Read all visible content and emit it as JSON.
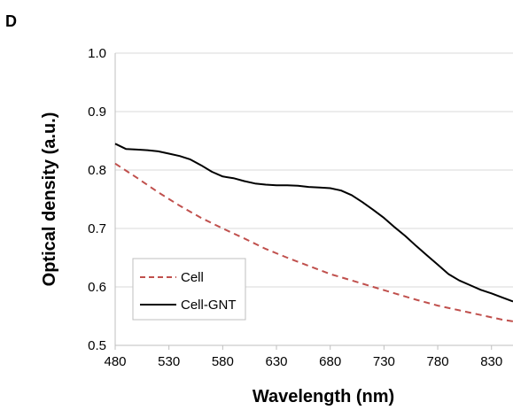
{
  "panel_label": "D",
  "colors": {
    "cell": "#c0504d",
    "cell_gnt": "#000000",
    "grid": "#d9d9d9",
    "axis": "#bfbfbf"
  },
  "chart_data": {
    "type": "line",
    "xlabel": "Wavelength (nm)",
    "ylabel": "Optical density (a.u.)",
    "xlim": [
      480,
      850
    ],
    "ylim": [
      0.5,
      1.0
    ],
    "x_ticks": [
      480,
      530,
      580,
      630,
      680,
      730,
      780,
      830
    ],
    "y_ticks": [
      0.5,
      0.6,
      0.7,
      0.8,
      0.9,
      1.0
    ],
    "y_tick_labels": [
      "0.5",
      "0.6",
      "0.7",
      "0.8",
      "0.9",
      "1.0"
    ],
    "grid": "horizontal",
    "legend_position": "lower-left",
    "series": [
      {
        "name": "Cell",
        "style": "dashed",
        "color": "#c0504d",
        "x": [
          480,
          500,
          520,
          540,
          560,
          580,
          600,
          620,
          640,
          660,
          680,
          700,
          720,
          740,
          760,
          780,
          800,
          820,
          840,
          850
        ],
        "y": [
          0.811,
          0.787,
          0.762,
          0.739,
          0.718,
          0.7,
          0.683,
          0.665,
          0.65,
          0.636,
          0.622,
          0.611,
          0.6,
          0.589,
          0.578,
          0.568,
          0.56,
          0.552,
          0.544,
          0.541
        ]
      },
      {
        "name": "Cell-GNT",
        "style": "solid",
        "color": "#000000",
        "x": [
          480,
          490,
          500,
          510,
          520,
          530,
          540,
          550,
          560,
          570,
          580,
          590,
          600,
          610,
          620,
          630,
          640,
          650,
          660,
          670,
          680,
          690,
          700,
          710,
          720,
          730,
          740,
          750,
          760,
          770,
          780,
          790,
          800,
          810,
          820,
          830,
          840,
          850
        ],
        "y": [
          0.845,
          0.836,
          0.835,
          0.834,
          0.832,
          0.828,
          0.824,
          0.818,
          0.808,
          0.797,
          0.789,
          0.786,
          0.781,
          0.777,
          0.775,
          0.774,
          0.774,
          0.773,
          0.771,
          0.77,
          0.769,
          0.765,
          0.757,
          0.745,
          0.732,
          0.718,
          0.702,
          0.687,
          0.67,
          0.654,
          0.638,
          0.622,
          0.611,
          0.603,
          0.595,
          0.589,
          0.582,
          0.575
        ]
      }
    ]
  }
}
